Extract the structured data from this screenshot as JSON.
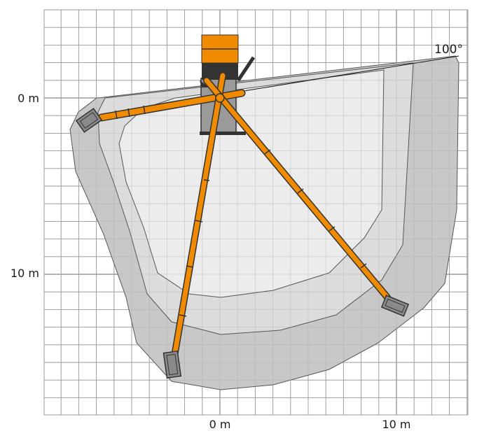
{
  "diagram": {
    "angle_label": "100°",
    "y_axis": {
      "labels": [
        "0 m",
        "10 m"
      ],
      "values_m": [
        0,
        10
      ]
    },
    "x_axis": {
      "labels": [
        "0 m",
        "10 m"
      ],
      "values_m": [
        0,
        10
      ]
    },
    "grid_step_m": 1,
    "colors": {
      "boom": "#f08a00",
      "zone_outer": "#c8c8c8",
      "zone_middle": "#dcdcdc",
      "zone_inner": "#ececec",
      "grid": "#9a9a9a",
      "outline": "#555555",
      "machine_dark": "#333333",
      "machine_grey": "#9a9a9a",
      "basket": "#8a8a8a"
    }
  }
}
